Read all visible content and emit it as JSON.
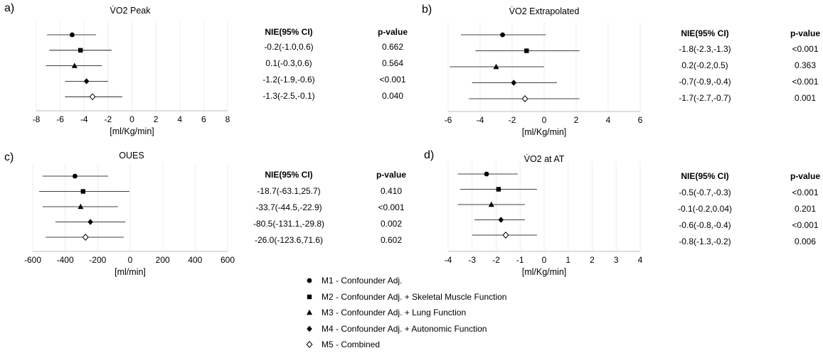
{
  "chart_data": [
    {
      "type": "forest",
      "panel_label": "a)",
      "title": "V̇O2 Peak",
      "xlabel": "[ml/Kg/min]",
      "xlim": [
        -8,
        8
      ],
      "xticks": [
        -8,
        -6,
        -4,
        -2,
        0,
        2,
        4,
        6,
        8
      ],
      "table_headers": [
        "NIE(95% CI)",
        "p-value"
      ],
      "rows": [
        {
          "model": "M1",
          "estimate": -5.0,
          "lower": -7.1,
          "upper": -3.0,
          "nie": "",
          "p": ""
        },
        {
          "model": "M2",
          "estimate": -4.3,
          "lower": -6.9,
          "upper": -1.7,
          "nie": "-0.2(-1.0,0.6)",
          "p": "0.662"
        },
        {
          "model": "M3",
          "estimate": -4.8,
          "lower": -7.2,
          "upper": -2.5,
          "nie": "0.1(-0.3,0.6)",
          "p": "0.564"
        },
        {
          "model": "M4",
          "estimate": -3.8,
          "lower": -5.6,
          "upper": -2.0,
          "nie": "-1.2(-1.9,-0.6)",
          "p": "<0.001"
        },
        {
          "model": "M5",
          "estimate": -3.3,
          "lower": -5.6,
          "upper": -0.8,
          "nie": "-1.3(-2.5,-0.1)",
          "p": "0.040"
        }
      ],
      "table_offset": 1
    },
    {
      "type": "forest",
      "panel_label": "b)",
      "title": "V̇O2 Extrapolated",
      "xlabel": "[ml/Kg/min]",
      "xlim": [
        -6,
        6
      ],
      "xticks": [
        -6,
        -4,
        -2,
        0,
        2,
        4,
        6
      ],
      "table_headers": [
        "NIE(95% CI)",
        "p-value"
      ],
      "rows": [
        {
          "model": "M1",
          "estimate": -2.6,
          "lower": -5.2,
          "upper": 0.1,
          "nie": "-1.8(-2.3,-1.3)",
          "p": "<0.001"
        },
        {
          "model": "M2",
          "estimate": -1.1,
          "lower": -4.3,
          "upper": 2.2,
          "nie": "0.2(-0.2,0.5)",
          "p": "0.363"
        },
        {
          "model": "M3",
          "estimate": -3.0,
          "lower": -5.9,
          "upper": 0.0,
          "nie": "-0.7(-0.9,-0.4)",
          "p": "<0.001"
        },
        {
          "model": "M4",
          "estimate": -1.9,
          "lower": -4.5,
          "upper": 0.8,
          "nie": "-1.7(-2.7,-0.7)",
          "p": "0.001"
        },
        {
          "model": "M5",
          "estimate": -1.2,
          "lower": -4.7,
          "upper": 2.2,
          "nie": "",
          "p": ""
        }
      ],
      "table_offset": 0
    },
    {
      "type": "forest",
      "panel_label": "c)",
      "title": "OUES",
      "xlabel": "[ml/min]",
      "xlim": [
        -600,
        600
      ],
      "xticks": [
        -600,
        -400,
        -200,
        0,
        200,
        400,
        600
      ],
      "table_headers": [
        "NIE(95% CI)",
        "p-value"
      ],
      "rows": [
        {
          "model": "M1",
          "estimate": -340,
          "lower": -540,
          "upper": -135,
          "nie": "",
          "p": ""
        },
        {
          "model": "M2",
          "estimate": -290,
          "lower": -560,
          "upper": -5,
          "nie": "-18.7(-63.1,25.7)",
          "p": "0.410"
        },
        {
          "model": "M3",
          "estimate": -305,
          "lower": -540,
          "upper": -75,
          "nie": "-33.7(-44.5,-22.9)",
          "p": "<0.001"
        },
        {
          "model": "M4",
          "estimate": -245,
          "lower": -460,
          "upper": -30,
          "nie": "-80.5(-131.1,-29.8)",
          "p": "0.002"
        },
        {
          "model": "M5",
          "estimate": -275,
          "lower": -520,
          "upper": -40,
          "nie": "-26.0(-123.6,71.6)",
          "p": "0.602"
        }
      ],
      "table_offset": 1
    },
    {
      "type": "forest",
      "panel_label": "d)",
      "title": "V̇O2 at AT",
      "xlabel": "[ml/Kg/min]",
      "xlim": [
        -4,
        4
      ],
      "xticks": [
        -4,
        -3,
        -2,
        -1,
        0,
        1,
        2,
        3,
        4
      ],
      "table_headers": [
        "NIE(95% CI)",
        "p-value"
      ],
      "rows": [
        {
          "model": "M1",
          "estimate": -2.4,
          "lower": -3.6,
          "upper": -1.1,
          "nie": "-0.5(-0.7,-0.3)",
          "p": "<0.001"
        },
        {
          "model": "M2",
          "estimate": -1.9,
          "lower": -3.5,
          "upper": -0.3,
          "nie": "-0.1(-0.2,0.04)",
          "p": "0.201"
        },
        {
          "model": "M3",
          "estimate": -2.2,
          "lower": -3.6,
          "upper": -0.8,
          "nie": "-0.6(-0.8,-0.4)",
          "p": "<0.001"
        },
        {
          "model": "M4",
          "estimate": -1.8,
          "lower": -2.9,
          "upper": -0.8,
          "nie": "-0.8(-1.3,-0.2)",
          "p": "0.006"
        },
        {
          "model": "M5",
          "estimate": -1.6,
          "lower": -3.0,
          "upper": -0.3,
          "nie": "",
          "p": ""
        }
      ],
      "table_offset": 0
    }
  ],
  "legend": [
    {
      "model": "M1",
      "marker": "circle",
      "label": "M1 - Confounder Adj."
    },
    {
      "model": "M2",
      "marker": "square",
      "label": "M2 - Confounder Adj. + Skeletal Muscle Function"
    },
    {
      "model": "M3",
      "marker": "triangle",
      "label": "M3 - Confounder Adj. + Lung Function"
    },
    {
      "model": "M4",
      "marker": "diamond",
      "label": "M4 - Confounder Adj. + Autonomic Function"
    },
    {
      "model": "M5",
      "marker": "open-diamond",
      "label": "M5 - Combined"
    }
  ]
}
